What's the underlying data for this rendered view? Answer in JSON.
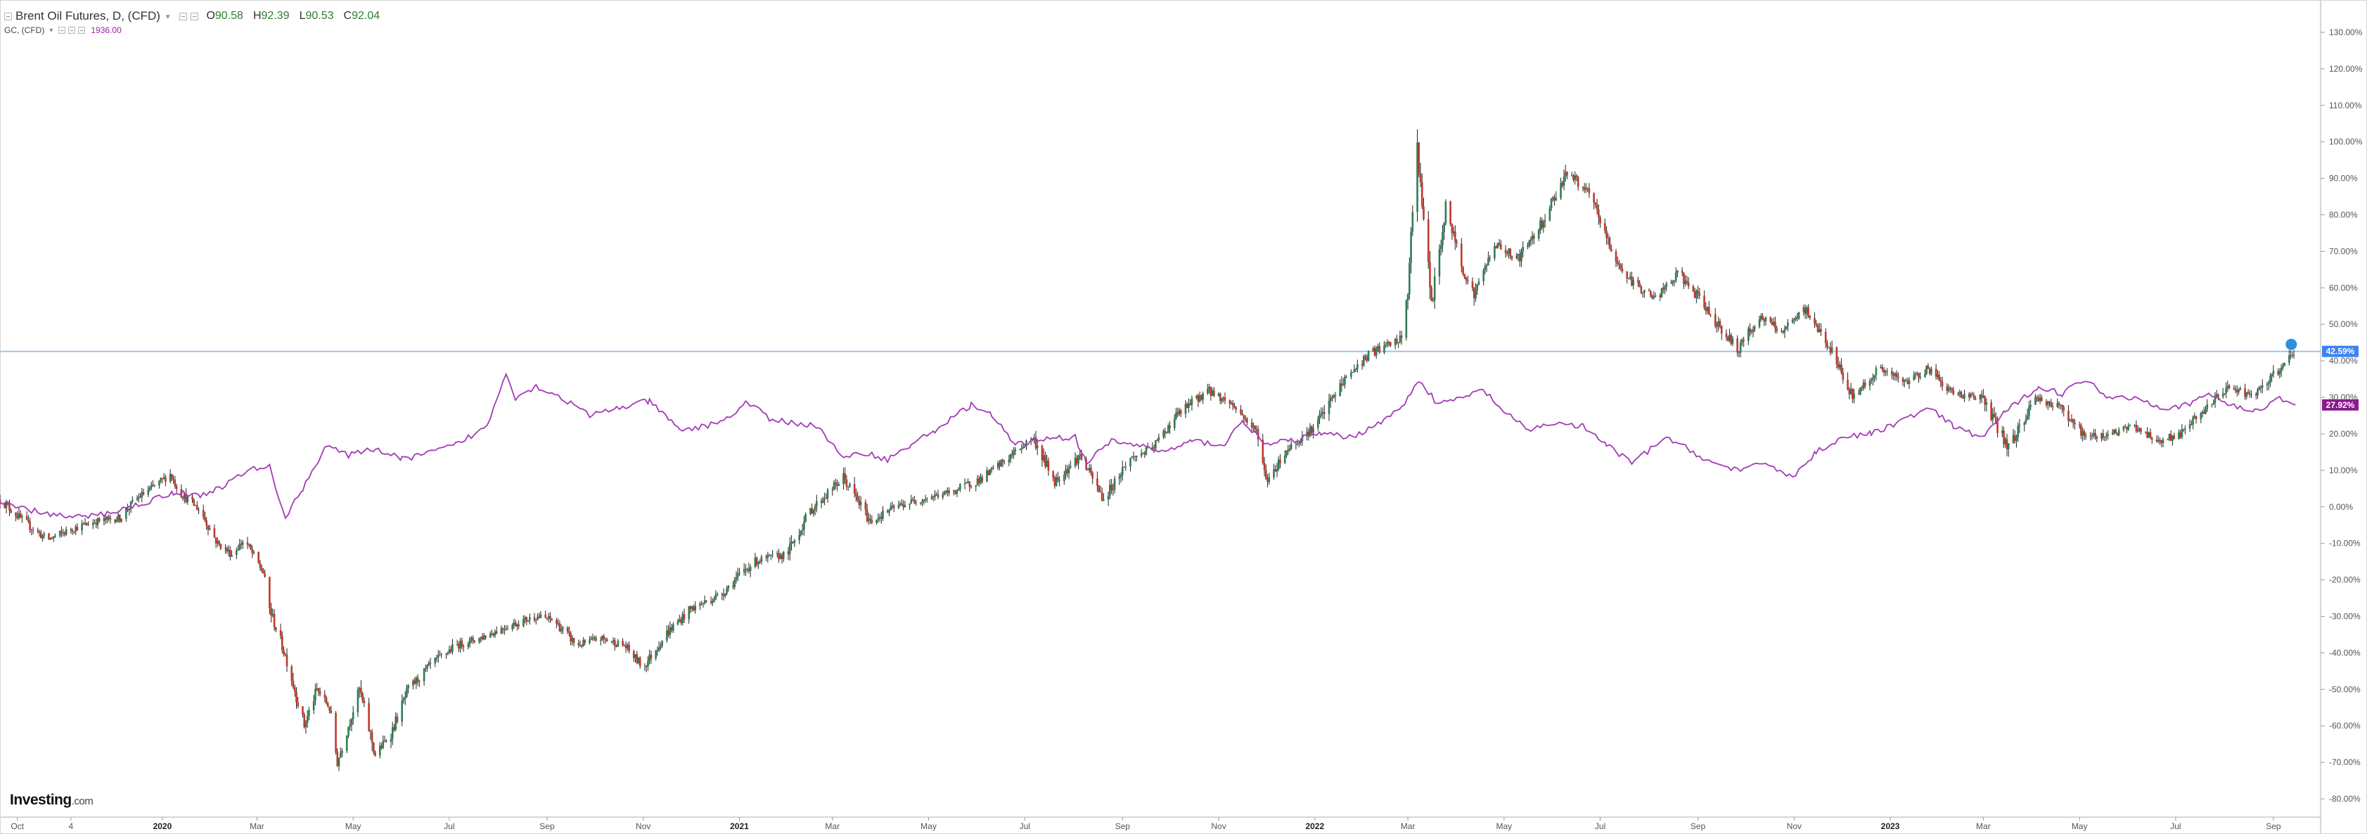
{
  "header": {
    "main_symbol_title": "Brent Oil Futures, D, (CFD)",
    "ohlc": [
      {
        "key": "O",
        "value": "90.58"
      },
      {
        "key": "H",
        "value": "92.39"
      },
      {
        "key": "L",
        "value": "90.53"
      },
      {
        "key": "C",
        "value": "92.04"
      }
    ],
    "compare_symbol_title": "GC, (CFD)",
    "compare_value": "1936.00"
  },
  "logo": {
    "brand": "Investing",
    "suffix": ".com"
  },
  "colors": {
    "up_candle": "#2e7d55",
    "down_candle": "#c0392b",
    "wick": "#222222",
    "compare_line": "#a23bb5",
    "price_line": "#9fc3e8",
    "brent_label_bg": "#3b82f6",
    "gold_label_bg": "#8b1a8b",
    "axis_border": "#c8c8c8"
  },
  "chart_data": {
    "type": "line",
    "y_unit": "%",
    "ylim": [
      -85,
      135
    ],
    "y_ticks": [
      "130.00%",
      "120.00%",
      "110.00%",
      "100.00%",
      "90.00%",
      "80.00%",
      "70.00%",
      "60.00%",
      "50.00%",
      "40.00%",
      "30.00%",
      "20.00%",
      "10.00%",
      "0.00%",
      "-10.00%",
      "-20.00%",
      "-30.00%",
      "-40.00%",
      "-50.00%",
      "-60.00%",
      "-70.00%",
      "-80.00%"
    ],
    "x_ticks": [
      {
        "label": "Oct",
        "date": "2019-10-01",
        "bold": false
      },
      {
        "label": "4",
        "date": "2019-11-04",
        "bold": false
      },
      {
        "label": "2020",
        "date": "2020-01-01",
        "bold": true
      },
      {
        "label": "Mar",
        "date": "2020-03-01",
        "bold": false
      },
      {
        "label": "May",
        "date": "2020-05-01",
        "bold": false
      },
      {
        "label": "Jul",
        "date": "2020-07-01",
        "bold": false
      },
      {
        "label": "Sep",
        "date": "2020-09-01",
        "bold": false
      },
      {
        "label": "Nov",
        "date": "2020-11-01",
        "bold": false
      },
      {
        "label": "2021",
        "date": "2021-01-01",
        "bold": true
      },
      {
        "label": "Mar",
        "date": "2021-03-01",
        "bold": false
      },
      {
        "label": "May",
        "date": "2021-05-01",
        "bold": false
      },
      {
        "label": "Jul",
        "date": "2021-07-01",
        "bold": false
      },
      {
        "label": "Sep",
        "date": "2021-09-01",
        "bold": false
      },
      {
        "label": "Nov",
        "date": "2021-11-01",
        "bold": false
      },
      {
        "label": "2022",
        "date": "2022-01-01",
        "bold": true
      },
      {
        "label": "Mar",
        "date": "2022-03-01",
        "bold": false
      },
      {
        "label": "May",
        "date": "2022-05-01",
        "bold": false
      },
      {
        "label": "Jul",
        "date": "2022-07-01",
        "bold": false
      },
      {
        "label": "Sep",
        "date": "2022-09-01",
        "bold": false
      },
      {
        "label": "Nov",
        "date": "2022-11-01",
        "bold": false
      },
      {
        "label": "2023",
        "date": "2023-01-01",
        "bold": true
      },
      {
        "label": "Mar",
        "date": "2023-03-01",
        "bold": false
      },
      {
        "label": "May",
        "date": "2023-05-01",
        "bold": false
      },
      {
        "label": "Jul",
        "date": "2023-07-01",
        "bold": false
      },
      {
        "label": "Sep",
        "date": "2023-09-01",
        "bold": false
      }
    ],
    "x_range": [
      "2019-09-20",
      "2023-09-22"
    ],
    "series": [
      {
        "name": "Brent Oil Futures",
        "kind": "candlestick",
        "points": [
          [
            "2019-09-20",
            2
          ],
          [
            "2019-10-05",
            -4
          ],
          [
            "2019-10-20",
            -9
          ],
          [
            "2019-11-05",
            -6
          ],
          [
            "2019-11-20",
            -4
          ],
          [
            "2019-12-05",
            -3
          ],
          [
            "2019-12-15",
            2
          ],
          [
            "2019-12-28",
            6
          ],
          [
            "2020-01-06",
            9
          ],
          [
            "2020-01-12",
            4
          ],
          [
            "2020-01-25",
            -1
          ],
          [
            "2020-02-05",
            -10
          ],
          [
            "2020-02-14",
            -13
          ],
          [
            "2020-02-22",
            -9
          ],
          [
            "2020-03-01",
            -15
          ],
          [
            "2020-03-05",
            -18
          ],
          [
            "2020-03-09",
            -28
          ],
          [
            "2020-03-20",
            -42
          ],
          [
            "2020-03-31",
            -60
          ],
          [
            "2020-04-08",
            -50
          ],
          [
            "2020-04-16",
            -55
          ],
          [
            "2020-04-21",
            -70
          ],
          [
            "2020-04-28",
            -60
          ],
          [
            "2020-05-05",
            -50
          ],
          [
            "2020-05-15",
            -68
          ],
          [
            "2020-05-25",
            -62
          ],
          [
            "2020-06-05",
            -50
          ],
          [
            "2020-06-20",
            -43
          ],
          [
            "2020-07-05",
            -38
          ],
          [
            "2020-07-20",
            -36
          ],
          [
            "2020-08-05",
            -33
          ],
          [
            "2020-08-25",
            -30
          ],
          [
            "2020-09-05",
            -31
          ],
          [
            "2020-09-20",
            -38
          ],
          [
            "2020-10-05",
            -36
          ],
          [
            "2020-10-20",
            -38
          ],
          [
            "2020-11-01",
            -44
          ],
          [
            "2020-11-15",
            -35
          ],
          [
            "2020-12-01",
            -28
          ],
          [
            "2020-12-20",
            -24
          ],
          [
            "2021-01-10",
            -15
          ],
          [
            "2021-01-31",
            -13
          ],
          [
            "2021-02-15",
            -1
          ],
          [
            "2021-03-08",
            8
          ],
          [
            "2021-03-25",
            -4
          ],
          [
            "2021-04-10",
            0
          ],
          [
            "2021-04-25",
            2
          ],
          [
            "2021-05-15",
            4
          ],
          [
            "2021-06-05",
            8
          ],
          [
            "2021-06-25",
            15
          ],
          [
            "2021-07-06",
            19
          ],
          [
            "2021-07-20",
            7
          ],
          [
            "2021-08-05",
            14
          ],
          [
            "2021-08-20",
            2
          ],
          [
            "2021-09-05",
            13
          ],
          [
            "2021-09-20",
            16
          ],
          [
            "2021-10-05",
            25
          ],
          [
            "2021-10-25",
            32
          ],
          [
            "2021-11-10",
            28
          ],
          [
            "2021-11-26",
            20
          ],
          [
            "2021-12-01",
            7
          ],
          [
            "2021-12-15",
            16
          ],
          [
            "2022-01-01",
            22
          ],
          [
            "2022-01-20",
            35
          ],
          [
            "2022-02-05",
            42
          ],
          [
            "2022-02-25",
            46
          ],
          [
            "2022-03-01",
            60
          ],
          [
            "2022-03-07",
            99
          ],
          [
            "2022-03-16",
            55
          ],
          [
            "2022-03-25",
            82
          ],
          [
            "2022-04-05",
            65
          ],
          [
            "2022-04-12",
            58
          ],
          [
            "2022-04-25",
            72
          ],
          [
            "2022-05-10",
            68
          ],
          [
            "2022-05-25",
            78
          ],
          [
            "2022-06-10",
            92
          ],
          [
            "2022-06-25",
            85
          ],
          [
            "2022-07-10",
            68
          ],
          [
            "2022-07-20",
            62
          ],
          [
            "2022-08-05",
            57
          ],
          [
            "2022-08-20",
            64
          ],
          [
            "2022-09-05",
            55
          ],
          [
            "2022-09-26",
            43
          ],
          [
            "2022-10-10",
            52
          ],
          [
            "2022-10-25",
            48
          ],
          [
            "2022-11-08",
            54
          ],
          [
            "2022-11-22",
            45
          ],
          [
            "2022-12-08",
            30
          ],
          [
            "2022-12-25",
            38
          ],
          [
            "2023-01-10",
            34
          ],
          [
            "2023-01-25",
            38
          ],
          [
            "2023-02-10",
            31
          ],
          [
            "2023-02-28",
            30
          ],
          [
            "2023-03-17",
            16
          ],
          [
            "2023-04-03",
            30
          ],
          [
            "2023-04-20",
            27
          ],
          [
            "2023-05-05",
            19
          ],
          [
            "2023-05-20",
            20
          ],
          [
            "2023-06-05",
            22
          ],
          [
            "2023-06-20",
            18
          ],
          [
            "2023-07-05",
            20
          ],
          [
            "2023-07-20",
            27
          ],
          [
            "2023-08-05",
            33
          ],
          [
            "2023-08-20",
            30
          ],
          [
            "2023-09-05",
            38
          ],
          [
            "2023-09-15",
            42.59
          ]
        ]
      },
      {
        "name": "GC, (CFD)",
        "kind": "line",
        "points": [
          [
            "2019-09-20",
            1
          ],
          [
            "2019-10-10",
            -1
          ],
          [
            "2019-11-05",
            -3
          ],
          [
            "2019-11-25",
            -2
          ],
          [
            "2019-12-20",
            1
          ],
          [
            "2020-01-08",
            4
          ],
          [
            "2020-01-25",
            3
          ],
          [
            "2020-02-10",
            6
          ],
          [
            "2020-02-24",
            10
          ],
          [
            "2020-03-09",
            11
          ],
          [
            "2020-03-19",
            -3
          ],
          [
            "2020-03-30",
            5
          ],
          [
            "2020-04-14",
            17
          ],
          [
            "2020-04-28",
            14
          ],
          [
            "2020-05-15",
            16
          ],
          [
            "2020-06-01",
            13
          ],
          [
            "2020-06-20",
            15
          ],
          [
            "2020-07-05",
            17
          ],
          [
            "2020-07-25",
            22
          ],
          [
            "2020-08-06",
            37
          ],
          [
            "2020-08-12",
            30
          ],
          [
            "2020-08-25",
            33
          ],
          [
            "2020-09-10",
            30
          ],
          [
            "2020-09-28",
            25
          ],
          [
            "2020-10-15",
            27
          ],
          [
            "2020-11-05",
            29
          ],
          [
            "2020-11-24",
            21
          ],
          [
            "2020-12-10",
            22
          ],
          [
            "2020-12-28",
            25
          ],
          [
            "2021-01-06",
            29
          ],
          [
            "2021-01-20",
            24
          ],
          [
            "2021-02-05",
            23
          ],
          [
            "2021-02-20",
            22
          ],
          [
            "2021-03-08",
            13
          ],
          [
            "2021-03-20",
            15
          ],
          [
            "2021-04-05",
            13
          ],
          [
            "2021-04-20",
            17
          ],
          [
            "2021-05-05",
            21
          ],
          [
            "2021-05-28",
            28
          ],
          [
            "2021-06-10",
            25
          ],
          [
            "2021-06-25",
            17
          ],
          [
            "2021-07-15",
            19
          ],
          [
            "2021-08-02",
            19
          ],
          [
            "2021-08-09",
            12
          ],
          [
            "2021-08-25",
            18
          ],
          [
            "2021-09-10",
            17
          ],
          [
            "2021-09-28",
            15
          ],
          [
            "2021-10-15",
            18
          ],
          [
            "2021-11-05",
            17
          ],
          [
            "2021-11-16",
            24
          ],
          [
            "2021-11-30",
            17
          ],
          [
            "2021-12-15",
            18
          ],
          [
            "2022-01-05",
            20
          ],
          [
            "2022-01-25",
            19
          ],
          [
            "2022-02-10",
            23
          ],
          [
            "2022-02-25",
            27
          ],
          [
            "2022-03-08",
            35
          ],
          [
            "2022-03-20",
            28
          ],
          [
            "2022-04-05",
            30
          ],
          [
            "2022-04-18",
            32
          ],
          [
            "2022-05-01",
            26
          ],
          [
            "2022-05-16",
            21
          ],
          [
            "2022-06-01",
            23
          ],
          [
            "2022-06-20",
            22
          ],
          [
            "2022-07-05",
            17
          ],
          [
            "2022-07-21",
            12
          ],
          [
            "2022-08-12",
            19
          ],
          [
            "2022-08-25",
            16
          ],
          [
            "2022-09-10",
            12
          ],
          [
            "2022-09-28",
            10
          ],
          [
            "2022-10-15",
            12
          ],
          [
            "2022-10-31",
            8
          ],
          [
            "2022-11-15",
            15
          ],
          [
            "2022-12-01",
            19
          ],
          [
            "2022-12-20",
            20
          ],
          [
            "2023-01-10",
            24
          ],
          [
            "2023-01-26",
            27
          ],
          [
            "2023-02-10",
            22
          ],
          [
            "2023-02-28",
            19
          ],
          [
            "2023-03-15",
            26
          ],
          [
            "2023-04-05",
            33
          ],
          [
            "2023-04-20",
            31
          ],
          [
            "2023-05-04",
            35
          ],
          [
            "2023-05-20",
            30
          ],
          [
            "2023-06-05",
            30
          ],
          [
            "2023-06-25",
            27
          ],
          [
            "2023-07-10",
            28
          ],
          [
            "2023-07-20",
            31
          ],
          [
            "2023-08-05",
            28
          ],
          [
            "2023-08-20",
            26
          ],
          [
            "2023-09-05",
            30
          ],
          [
            "2023-09-15",
            27.92
          ]
        ]
      }
    ],
    "last_value_labels": [
      {
        "series": "Brent Oil Futures",
        "text": "42.59%"
      },
      {
        "series": "GC, (CFD)",
        "text": "27.92%"
      }
    ],
    "price_line_value": 42.59,
    "grid": false,
    "legend_placement": "top-left"
  }
}
